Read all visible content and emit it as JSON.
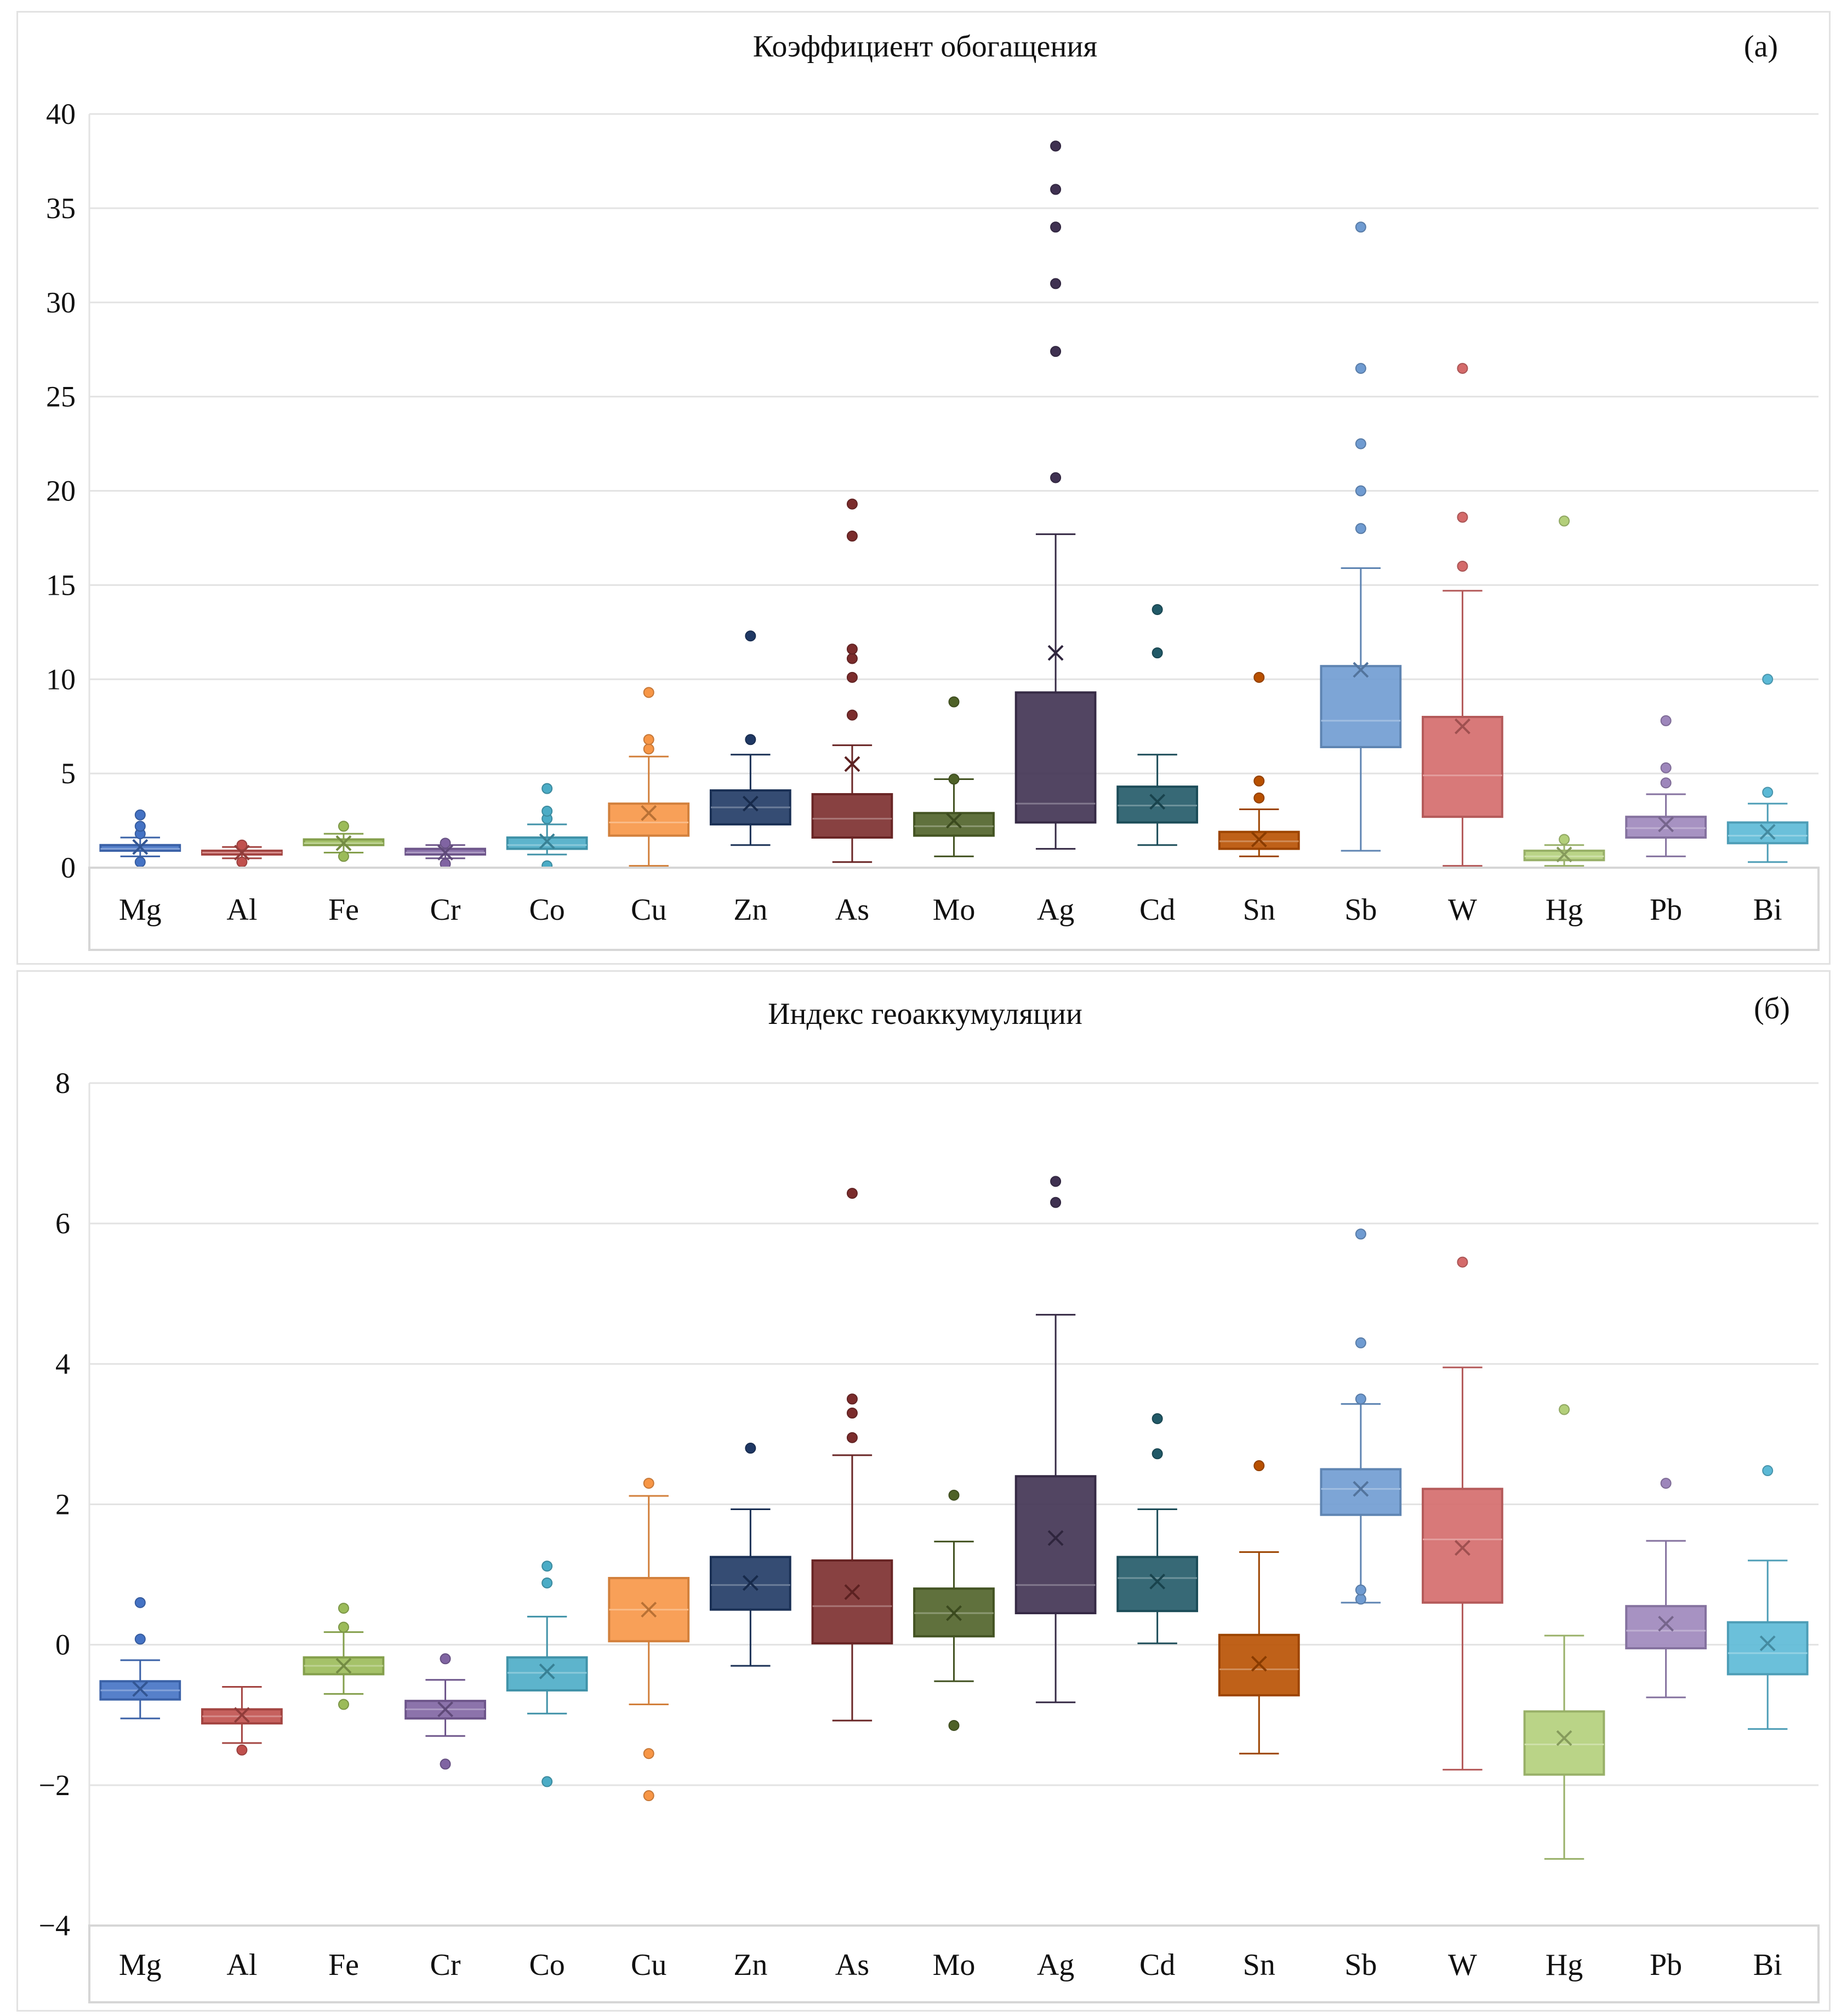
{
  "chart_data": [
    {
      "type": "box",
      "title": "Коэффициент обогащения",
      "panel_label": "(а)",
      "xlabel": "",
      "ylabel": "",
      "ylim": [
        0,
        40
      ],
      "yticks": [
        0,
        5,
        10,
        15,
        20,
        25,
        30,
        35,
        40
      ],
      "grid": true,
      "legend": "none",
      "categories": [
        "Mg",
        "Al",
        "Fe",
        "Cr",
        "Co",
        "Cu",
        "Zn",
        "As",
        "Mo",
        "Ag",
        "Cd",
        "Sn",
        "Sb",
        "W",
        "Hg",
        "Pb",
        "Bi"
      ],
      "colors": [
        "#4472c4",
        "#c0504d",
        "#9bbb59",
        "#8064a2",
        "#4bacc6",
        "#f79646",
        "#1f3864",
        "#7b2c2c",
        "#4f6228",
        "#3f3151",
        "#215967",
        "#b85000",
        "#6f9bd1",
        "#d46a6a",
        "#b3cf7a",
        "#9d86bb",
        "#5bb9d6"
      ],
      "boxes": [
        {
          "min": 0.6,
          "q1": 0.9,
          "median": 1.0,
          "q3": 1.2,
          "max": 1.6,
          "mean": 1.1,
          "outliers": [
            0.3,
            1.8,
            2.2,
            2.8
          ]
        },
        {
          "min": 0.5,
          "q1": 0.7,
          "median": 0.8,
          "q3": 0.9,
          "max": 1.1,
          "mean": 0.8,
          "outliers": [
            0.3,
            1.2
          ]
        },
        {
          "min": 0.8,
          "q1": 1.2,
          "median": 1.3,
          "q3": 1.5,
          "max": 1.8,
          "mean": 1.3,
          "outliers": [
            0.6,
            2.2
          ]
        },
        {
          "min": 0.5,
          "q1": 0.7,
          "median": 0.8,
          "q3": 1.0,
          "max": 1.2,
          "mean": 0.8,
          "outliers": [
            0.2,
            1.3
          ]
        },
        {
          "min": 0.7,
          "q1": 1.0,
          "median": 1.2,
          "q3": 1.6,
          "max": 2.3,
          "mean": 1.4,
          "outliers": [
            0.1,
            2.6,
            3.0,
            4.2
          ]
        },
        {
          "min": 0.1,
          "q1": 1.7,
          "median": 2.4,
          "q3": 3.4,
          "max": 5.9,
          "mean": 2.9,
          "outliers": [
            6.3,
            6.8,
            9.3
          ]
        },
        {
          "min": 1.2,
          "q1": 2.3,
          "median": 3.2,
          "q3": 4.1,
          "max": 6.0,
          "mean": 3.4,
          "outliers": [
            6.8,
            12.3
          ]
        },
        {
          "min": 0.3,
          "q1": 1.6,
          "median": 2.6,
          "q3": 3.9,
          "max": 6.5,
          "mean": 5.5,
          "outliers": [
            8.1,
            10.1,
            11.1,
            11.6,
            17.6,
            19.3
          ]
        },
        {
          "min": 0.6,
          "q1": 1.7,
          "median": 2.2,
          "q3": 2.9,
          "max": 4.7,
          "mean": 2.5,
          "outliers": [
            4.7,
            8.8
          ]
        },
        {
          "min": 1.0,
          "q1": 2.4,
          "median": 3.4,
          "q3": 9.3,
          "max": 17.7,
          "mean": 11.4,
          "outliers": [
            20.7,
            27.4,
            31.0,
            34.0,
            36.0,
            38.3
          ]
        },
        {
          "min": 1.2,
          "q1": 2.4,
          "median": 3.3,
          "q3": 4.3,
          "max": 6.0,
          "mean": 3.5,
          "outliers": [
            11.4,
            13.7
          ]
        },
        {
          "min": 0.6,
          "q1": 1.0,
          "median": 1.4,
          "q3": 1.9,
          "max": 3.1,
          "mean": 1.5,
          "outliers": [
            3.7,
            4.6,
            10.1
          ]
        },
        {
          "min": 0.9,
          "q1": 6.4,
          "median": 7.8,
          "q3": 10.7,
          "max": 15.9,
          "mean": 10.5,
          "outliers": [
            18.0,
            20.0,
            22.5,
            26.5,
            34.0
          ]
        },
        {
          "min": 0.1,
          "q1": 2.7,
          "median": 4.9,
          "q3": 8.0,
          "max": 14.7,
          "mean": 7.5,
          "outliers": [
            16.0,
            18.6,
            26.5
          ]
        },
        {
          "min": 0.1,
          "q1": 0.4,
          "median": 0.6,
          "q3": 0.9,
          "max": 1.2,
          "mean": 0.7,
          "outliers": [
            1.5,
            18.4
          ]
        },
        {
          "min": 0.6,
          "q1": 1.6,
          "median": 2.1,
          "q3": 2.7,
          "max": 3.9,
          "mean": 2.3,
          "outliers": [
            4.5,
            5.3,
            7.8
          ]
        },
        {
          "min": 0.3,
          "q1": 1.3,
          "median": 1.7,
          "q3": 2.4,
          "max": 3.4,
          "mean": 1.9,
          "outliers": [
            4.0,
            10.0
          ]
        }
      ]
    },
    {
      "type": "box",
      "title": "Индекс геоаккумуляции",
      "panel_label": "(б)",
      "xlabel": "",
      "ylabel": "",
      "ylim": [
        -4,
        8
      ],
      "yticks": [
        -4,
        -2,
        0,
        2,
        4,
        6,
        8
      ],
      "grid": true,
      "legend": "none",
      "categories": [
        "Mg",
        "Al",
        "Fe",
        "Cr",
        "Co",
        "Cu",
        "Zn",
        "As",
        "Mo",
        "Ag",
        "Cd",
        "Sn",
        "Sb",
        "W",
        "Hg",
        "Pb",
        "Bi"
      ],
      "colors": [
        "#4472c4",
        "#c0504d",
        "#9bbb59",
        "#8064a2",
        "#4bacc6",
        "#f79646",
        "#1f3864",
        "#7b2c2c",
        "#4f6228",
        "#3f3151",
        "#215967",
        "#b85000",
        "#6f9bd1",
        "#d46a6a",
        "#b3cf7a",
        "#9d86bb",
        "#5bb9d6"
      ],
      "boxes": [
        {
          "min": -1.05,
          "q1": -0.78,
          "median": -0.65,
          "q3": -0.52,
          "max": -0.22,
          "mean": -0.63,
          "outliers": [
            0.08,
            0.6
          ]
        },
        {
          "min": -1.4,
          "q1": -1.12,
          "median": -1.02,
          "q3": -0.92,
          "max": -0.6,
          "mean": -1.0,
          "outliers": [
            -1.5
          ]
        },
        {
          "min": -0.7,
          "q1": -0.42,
          "median": -0.3,
          "q3": -0.18,
          "max": 0.18,
          "mean": -0.3,
          "outliers": [
            -0.85,
            0.25,
            0.52
          ]
        },
        {
          "min": -1.3,
          "q1": -1.05,
          "median": -0.92,
          "q3": -0.8,
          "max": -0.5,
          "mean": -0.92,
          "outliers": [
            -1.7,
            -0.2
          ]
        },
        {
          "min": -0.98,
          "q1": -0.65,
          "median": -0.4,
          "q3": -0.18,
          "max": 0.4,
          "mean": -0.38,
          "outliers": [
            -1.95,
            0.88,
            1.12
          ]
        },
        {
          "min": -0.85,
          "q1": 0.05,
          "median": 0.5,
          "q3": 0.95,
          "max": 2.12,
          "mean": 0.5,
          "outliers": [
            -2.15,
            -1.55,
            2.3
          ]
        },
        {
          "min": -0.3,
          "q1": 0.5,
          "median": 0.85,
          "q3": 1.25,
          "max": 1.93,
          "mean": 0.88,
          "outliers": [
            2.8
          ]
        },
        {
          "min": -1.08,
          "q1": 0.02,
          "median": 0.55,
          "q3": 1.2,
          "max": 2.7,
          "mean": 0.75,
          "outliers": [
            2.95,
            3.3,
            3.5,
            6.43
          ]
        },
        {
          "min": -0.52,
          "q1": 0.12,
          "median": 0.45,
          "q3": 0.8,
          "max": 1.47,
          "mean": 0.45,
          "outliers": [
            -1.15,
            2.13
          ]
        },
        {
          "min": -0.82,
          "q1": 0.45,
          "median": 0.85,
          "q3": 2.4,
          "max": 4.7,
          "mean": 1.52,
          "outliers": [
            6.3,
            6.6
          ]
        },
        {
          "min": 0.02,
          "q1": 0.48,
          "median": 0.95,
          "q3": 1.25,
          "max": 1.93,
          "mean": 0.9,
          "outliers": [
            2.72,
            3.22
          ]
        },
        {
          "min": -1.55,
          "q1": -0.72,
          "median": -0.35,
          "q3": 0.14,
          "max": 1.32,
          "mean": -0.27,
          "outliers": [
            2.55
          ]
        },
        {
          "min": 0.6,
          "q1": 1.85,
          "median": 2.22,
          "q3": 2.5,
          "max": 3.43,
          "mean": 2.22,
          "outliers": [
            0.65,
            0.78,
            3.5,
            4.3,
            5.85
          ]
        },
        {
          "min": -1.78,
          "q1": 0.6,
          "median": 1.5,
          "q3": 2.22,
          "max": 3.95,
          "mean": 1.38,
          "outliers": [
            5.45
          ]
        },
        {
          "min": -3.05,
          "q1": -1.85,
          "median": -1.42,
          "q3": -0.95,
          "max": 0.13,
          "mean": -1.33,
          "outliers": [
            3.35
          ]
        },
        {
          "min": -0.75,
          "q1": -0.05,
          "median": 0.2,
          "q3": 0.55,
          "max": 1.48,
          "mean": 0.3,
          "outliers": [
            2.3
          ]
        },
        {
          "min": -1.2,
          "q1": -0.42,
          "median": -0.12,
          "q3": 0.32,
          "max": 1.2,
          "mean": 0.02,
          "outliers": [
            2.48
          ]
        }
      ]
    }
  ]
}
